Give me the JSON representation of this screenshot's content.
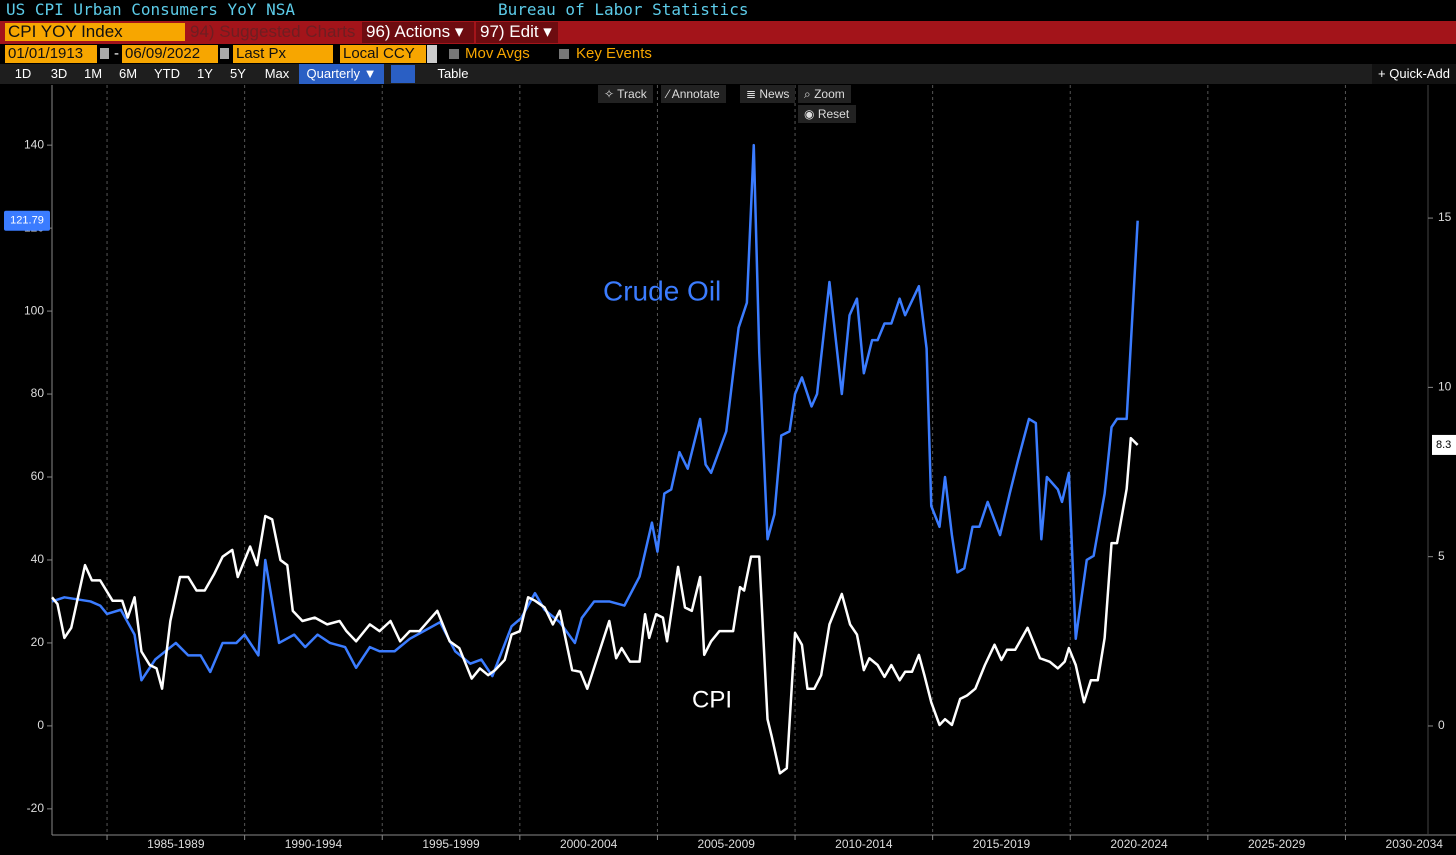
{
  "ui": {
    "title": "US CPI Urban Consumers YoY NSA",
    "source": "Bureau of Labor Statistics",
    "ticker": "CPI YOY Index",
    "menu": [
      "94) Suggested Charts",
      "96) Actions ▾",
      "97) Edit ▾"
    ],
    "start_date": "01/01/1913",
    "date_separator": "-",
    "end_date": "06/09/2022",
    "field": "Last Px",
    "currency": "Local CCY",
    "options": [
      "Mov Avgs",
      "Key Events"
    ],
    "ranges": [
      "1D",
      "3D",
      "1M",
      "6M",
      "YTD",
      "1Y",
      "5Y",
      "Max"
    ],
    "frequency": "Quarterly ▼",
    "table": "Table",
    "quick_add": "+ Quick-Add",
    "tools": [
      "Track",
      "Annotate",
      "News",
      "Zoom"
    ],
    "reset": "Reset"
  },
  "chart_data": {
    "type": "line",
    "xlim": [
      1983,
      2033
    ],
    "xticks": [
      {
        "value": 1985,
        "label": "1985-1989"
      },
      {
        "value": 1990,
        "label": "1990-1994"
      },
      {
        "value": 1995,
        "label": "1995-1999"
      },
      {
        "value": 2000,
        "label": "2000-2004"
      },
      {
        "value": 2005,
        "label": "2005-2009"
      },
      {
        "value": 2010,
        "label": "2010-2014"
      },
      {
        "value": 2015,
        "label": "2015-2019"
      },
      {
        "value": 2020,
        "label": "2020-2024"
      },
      {
        "value": 2025,
        "label": "2025-2029"
      },
      {
        "value": 2030,
        "label": "2030-2034"
      }
    ],
    "ylim": [
      -26.3,
      154.5
    ],
    "yticks": [
      -20,
      0,
      20,
      40,
      60,
      80,
      100,
      120,
      140
    ],
    "y2lim": [
      -3.22,
      18.93
    ],
    "y2ticks": [
      0,
      5,
      10,
      15
    ],
    "grid": true,
    "series": [
      {
        "name": "Crude Oil",
        "color": "#3b7cff",
        "axis": "y",
        "last_value_label": "121.79",
        "x": [
          1983.0,
          1983.45,
          1984.4,
          1984.75,
          1985.0,
          1985.5,
          1985.75,
          1986.0,
          1986.25,
          1986.75,
          1987.5,
          1987.95,
          1988.4,
          1988.75,
          1989.2,
          1989.7,
          1990.0,
          1990.5,
          1990.75,
          1991.25,
          1991.8,
          1992.2,
          1992.65,
          1993.1,
          1993.65,
          1994.05,
          1994.55,
          1994.9,
          1995.45,
          1996.0,
          1996.55,
          1997.1,
          1997.65,
          1998.2,
          1998.6,
          1999.0,
          1999.7,
          2000.05,
          2000.55,
          2000.9,
          2001.45,
          2002.0,
          2002.25,
          2002.7,
          2003.25,
          2003.8,
          2004.35,
          2004.8,
          2005.0,
          2005.25,
          2005.5,
          2005.8,
          2006.1,
          2006.55,
          2006.75,
          2006.95,
          2007.5,
          2007.95,
          2008.25,
          2008.5,
          2008.7,
          2009.0,
          2009.25,
          2009.5,
          2009.8,
          2010.0,
          2010.25,
          2010.6,
          2010.8,
          2011.25,
          2011.7,
          2011.98,
          2012.25,
          2012.5,
          2012.8,
          2013.0,
          2013.25,
          2013.5,
          2013.8,
          2014.0,
          2014.5,
          2014.78,
          2014.95,
          2015.25,
          2015.45,
          2015.7,
          2015.9,
          2016.15,
          2016.45,
          2016.7,
          2017.0,
          2017.45,
          2017.8,
          2018.1,
          2018.5,
          2018.75,
          2018.95,
          2019.15,
          2019.55,
          2019.7,
          2019.95,
          2020.2,
          2020.6,
          2020.85,
          2021.25,
          2021.5,
          2021.7,
          2022.05,
          2022.45
        ],
        "values": [
          30,
          31,
          30,
          29,
          27,
          28,
          25,
          22,
          11,
          16,
          20,
          17,
          17,
          13,
          20,
          20,
          22,
          17,
          40,
          20,
          22,
          19,
          22,
          20,
          19,
          14,
          19,
          18,
          18,
          21,
          23,
          25,
          18,
          15,
          16,
          12,
          24,
          26,
          32,
          28,
          25,
          20,
          26,
          30,
          30,
          29,
          36,
          49,
          42,
          56,
          57,
          66,
          62,
          74,
          63,
          61,
          71,
          96,
          102,
          140,
          90,
          45,
          51,
          70,
          71,
          80,
          84,
          77,
          80,
          107,
          80,
          99,
          103,
          85,
          93,
          93,
          97,
          97,
          103,
          99,
          106,
          91,
          53,
          48,
          60,
          46,
          37,
          38,
          48,
          48,
          54,
          46,
          56,
          64,
          74,
          73,
          45,
          60,
          57,
          54,
          61,
          21,
          40,
          41,
          56,
          72,
          74,
          74,
          121.79
        ]
      },
      {
        "name": "CPI",
        "color": "#ffffff",
        "axis": "y2",
        "last_value_label": "8.3",
        "x": [
          1983.0,
          1983.2,
          1983.45,
          1983.7,
          1984.2,
          1984.45,
          1984.75,
          1985.2,
          1985.55,
          1985.75,
          1986.0,
          1986.25,
          1986.55,
          1986.8,
          1987.0,
          1987.3,
          1987.65,
          1987.95,
          1988.25,
          1988.55,
          1988.9,
          1989.2,
          1989.55,
          1989.75,
          1990.2,
          1990.45,
          1990.75,
          1991.0,
          1991.3,
          1991.55,
          1991.75,
          1992.1,
          1992.55,
          1993.0,
          1993.45,
          1993.7,
          1994.05,
          1994.55,
          1994.9,
          1995.3,
          1995.65,
          1996.0,
          1996.35,
          1997.0,
          1997.45,
          1997.8,
          1998.25,
          1998.55,
          1998.85,
          1999.1,
          1999.45,
          1999.7,
          2000.0,
          2000.3,
          2000.55,
          2000.9,
          2001.2,
          2001.45,
          2001.9,
          2002.2,
          2002.45,
          2002.85,
          2003.25,
          2003.5,
          2003.7,
          2004.0,
          2004.35,
          2004.55,
          2004.7,
          2004.95,
          2005.2,
          2005.35,
          2005.75,
          2006.0,
          2006.25,
          2006.55,
          2006.7,
          2006.95,
          2007.25,
          2007.75,
          2008.0,
          2008.15,
          2008.4,
          2008.7,
          2009.0,
          2009.15,
          2009.45,
          2009.7,
          2010.0,
          2010.25,
          2010.45,
          2010.7,
          2010.95,
          2011.25,
          2011.7,
          2012.0,
          2012.25,
          2012.5,
          2012.7,
          2013.0,
          2013.25,
          2013.5,
          2013.8,
          2014.0,
          2014.25,
          2014.5,
          2014.7,
          2014.95,
          2015.25,
          2015.45,
          2015.7,
          2016.0,
          2016.25,
          2016.55,
          2016.9,
          2017.25,
          2017.5,
          2017.7,
          2018.0,
          2018.45,
          2018.9,
          2019.25,
          2019.55,
          2019.8,
          2019.95,
          2020.2,
          2020.5,
          2020.75,
          2021.0,
          2021.25,
          2021.5,
          2021.7,
          2022.05,
          2022.2,
          2022.45
        ],
        "values": [
          3.8,
          3.6,
          2.6,
          2.9,
          4.75,
          4.3,
          4.3,
          3.7,
          3.7,
          3.2,
          3.8,
          2.2,
          1.8,
          1.7,
          1.1,
          3.1,
          4.4,
          4.4,
          4.0,
          4.0,
          4.5,
          5.0,
          5.2,
          4.4,
          5.3,
          4.75,
          6.2,
          6.1,
          4.9,
          4.75,
          3.4,
          3.1,
          3.2,
          3.0,
          3.1,
          2.8,
          2.5,
          3.0,
          2.8,
          3.1,
          2.5,
          2.8,
          2.8,
          3.4,
          2.5,
          2.3,
          1.4,
          1.7,
          1.5,
          1.65,
          1.95,
          2.7,
          2.8,
          3.8,
          3.7,
          3.5,
          3.0,
          3.4,
          1.65,
          1.6,
          1.1,
          2.1,
          3.1,
          2.0,
          2.3,
          1.9,
          1.9,
          3.3,
          2.6,
          3.3,
          3.2,
          2.5,
          4.7,
          3.5,
          3.4,
          4.4,
          2.1,
          2.5,
          2.8,
          2.8,
          4.1,
          4.0,
          5.0,
          5.0,
          0.2,
          -0.3,
          -1.4,
          -1.25,
          2.75,
          2.4,
          1.1,
          1.1,
          1.5,
          3.0,
          3.9,
          3.0,
          2.7,
          1.65,
          2.0,
          1.8,
          1.45,
          1.8,
          1.35,
          1.6,
          1.6,
          2.1,
          1.5,
          0.7,
          0.03,
          0.2,
          0.03,
          0.8,
          0.9,
          1.1,
          1.8,
          2.4,
          1.95,
          2.25,
          2.25,
          2.9,
          2.0,
          1.9,
          1.7,
          1.9,
          2.3,
          1.8,
          0.7,
          1.35,
          1.35,
          2.6,
          5.4,
          5.4,
          7.0,
          8.5,
          8.3
        ]
      }
    ]
  }
}
